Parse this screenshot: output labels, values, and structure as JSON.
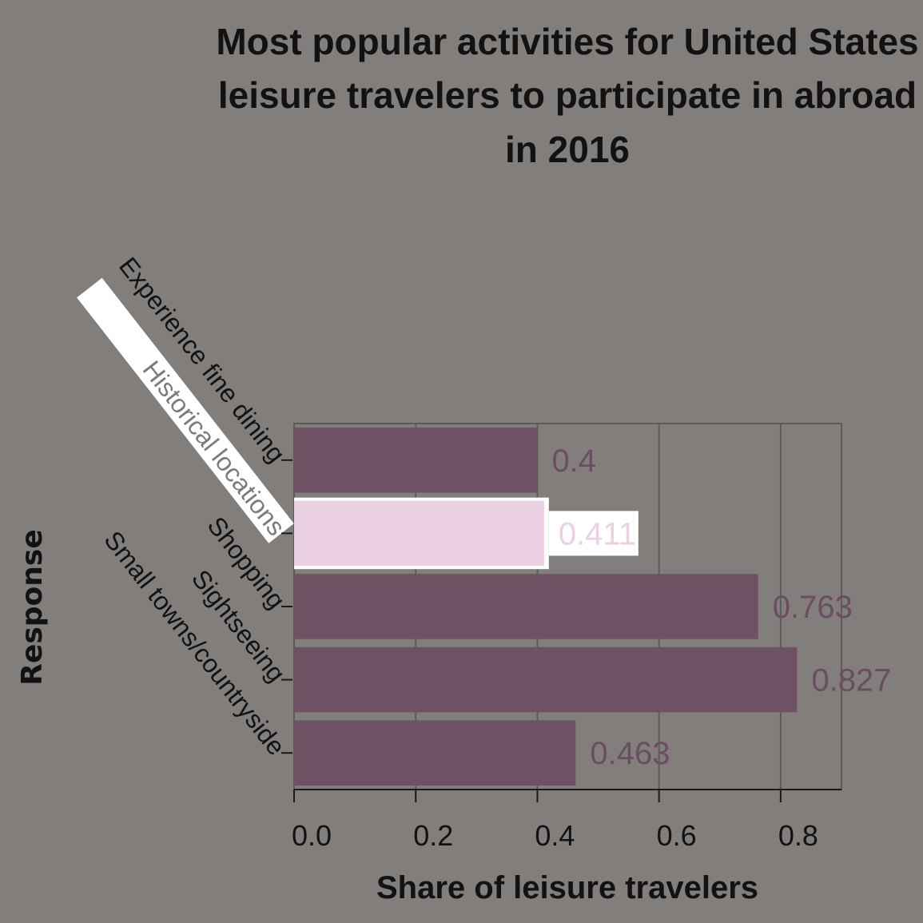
{
  "chart_data": {
    "type": "bar",
    "orientation": "horizontal",
    "title": "Most popular activities for United States leisure travelers to participate in abroad in 2016",
    "title_lines": [
      "Most popular activities for United States",
      "leisure travelers to participate in abroad",
      "in 2016"
    ],
    "xlabel": "Share of leisure travelers",
    "ylabel": "Response",
    "categories": [
      "Experience fine dining",
      "Historical locations",
      "Shopping",
      "Sightseeing",
      "Small towns/countryside"
    ],
    "values": [
      0.4,
      0.411,
      0.763,
      0.827,
      0.463
    ],
    "value_labels": [
      "0.4",
      "0.411",
      "0.763",
      "0.827",
      "0.463"
    ],
    "highlighted_index": 1,
    "xlim": [
      0,
      0.9
    ],
    "x_ticks": [
      0.0,
      0.2,
      0.4,
      0.6,
      0.8
    ],
    "x_tick_labels": [
      "0.0",
      "0.2",
      "0.4",
      "0.6",
      "0.8"
    ],
    "grid": "vertical",
    "colors": {
      "background": "#827e7c",
      "bar": "#6e5264",
      "bar_highlight": "#ecd0e4",
      "value_label": "#6a4d62",
      "value_label_highlight": "#ecd0e4",
      "grid": "#5e5a59",
      "text": "#121212",
      "highlight_box": "#ffffff"
    }
  }
}
